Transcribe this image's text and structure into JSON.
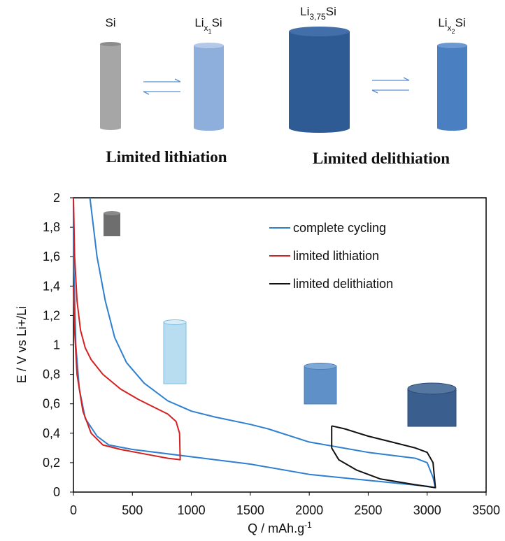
{
  "diagram": {
    "states": [
      {
        "name": "Si"
      },
      {
        "name": "Li",
        "sub": "x",
        "subsub": "1",
        "tail": "Si"
      },
      {
        "name": "Li",
        "sub": "3,75",
        "tail": "Si"
      },
      {
        "name": "Li",
        "sub": "x",
        "subsub": "2",
        "tail": "Si"
      }
    ],
    "captions": [
      "Limited lithiation",
      "Limited delithiation"
    ]
  },
  "chart_data": {
    "type": "line",
    "y_label": "E / V vs Li+/Li",
    "x_label": "Q / mAh.g",
    "x_label_sup": "-1",
    "xlim": [
      0,
      3500
    ],
    "xticks": [
      0,
      500,
      1000,
      1500,
      2000,
      2500,
      3000,
      3500
    ],
    "ylim": [
      0,
      2
    ],
    "yticks": [
      0,
      {
        "value": 0.2,
        "label": "0,2"
      },
      {
        "value": 0.4,
        "label": "0,4"
      },
      {
        "value": 0.6,
        "label": "0,6"
      },
      {
        "value": 0.8,
        "label": "0,8"
      },
      1,
      {
        "value": 1.2,
        "label": "1,2"
      },
      {
        "value": 1.4,
        "label": "1,4"
      },
      {
        "value": 1.6,
        "label": "1,6"
      },
      {
        "value": 1.8,
        "label": "1,8"
      },
      2
    ],
    "legend": "upper right",
    "series": [
      {
        "name": "complete cycling",
        "color": "#2e7fd0",
        "x": [
          140,
          200,
          270,
          350,
          450,
          600,
          800,
          1000,
          1200,
          1500,
          1650,
          2000,
          2500,
          2900,
          3000,
          3050,
          3070,
          3000,
          2500,
          2000,
          1500,
          1000,
          500,
          300,
          200,
          100,
          50,
          20,
          5,
          0
        ],
        "values": [
          2.0,
          1.6,
          1.3,
          1.05,
          0.88,
          0.74,
          0.62,
          0.55,
          0.51,
          0.46,
          0.43,
          0.34,
          0.27,
          0.23,
          0.2,
          0.1,
          0.03,
          0.04,
          0.08,
          0.12,
          0.19,
          0.24,
          0.29,
          0.32,
          0.38,
          0.5,
          0.7,
          1.0,
          1.5,
          2.0
        ]
      },
      {
        "name": "limited lithiation",
        "color": "#d42020",
        "x": [
          0,
          10,
          30,
          60,
          100,
          150,
          250,
          400,
          550,
          700,
          800,
          870,
          900,
          905,
          800,
          600,
          400,
          250,
          150,
          80,
          30,
          10,
          0
        ],
        "values": [
          2.0,
          1.6,
          1.3,
          1.1,
          0.98,
          0.9,
          0.8,
          0.7,
          0.63,
          0.57,
          0.53,
          0.48,
          0.4,
          0.22,
          0.23,
          0.26,
          0.29,
          0.32,
          0.4,
          0.55,
          0.8,
          1.1,
          1.4
        ]
      },
      {
        "name": "limited delithiation",
        "color": "#111111",
        "x": [
          2190,
          2300,
          2500,
          2700,
          2900,
          3000,
          3050,
          3070,
          2900,
          2600,
          2400,
          2250,
          2190,
          2190
        ],
        "values": [
          0.45,
          0.43,
          0.38,
          0.34,
          0.3,
          0.27,
          0.2,
          0.03,
          0.05,
          0.09,
          0.15,
          0.22,
          0.3,
          0.45
        ]
      }
    ]
  }
}
